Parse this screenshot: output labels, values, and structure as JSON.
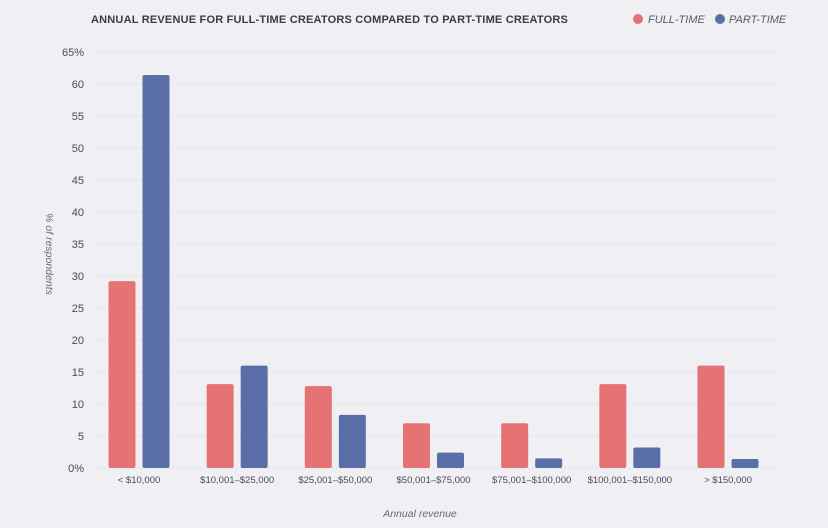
{
  "chart_data": {
    "type": "bar",
    "title": "ANNUAL REVENUE FOR FULL-TIME CREATORS COMPARED TO PART-TIME CREATORS",
    "xlabel": "Annual revenue",
    "ylabel": "% of respondents",
    "ylim": [
      0,
      65
    ],
    "yticks": [
      {
        "value": 0,
        "label": "0%"
      },
      {
        "value": 5,
        "label": "5"
      },
      {
        "value": 10,
        "label": "10"
      },
      {
        "value": 15,
        "label": "15"
      },
      {
        "value": 20,
        "label": "20"
      },
      {
        "value": 25,
        "label": "25"
      },
      {
        "value": 30,
        "label": "30"
      },
      {
        "value": 35,
        "label": "35"
      },
      {
        "value": 40,
        "label": "40"
      },
      {
        "value": 45,
        "label": "45"
      },
      {
        "value": 50,
        "label": "50"
      },
      {
        "value": 55,
        "label": "55"
      },
      {
        "value": 60,
        "label": "60"
      },
      {
        "value": 65,
        "label": "65%"
      }
    ],
    "grid": true,
    "legend_position": "top-right",
    "categories": [
      "< $10,000",
      "$10,001–$25,000",
      "$25,001–$50,000",
      "$50,001–$75,000",
      "$75,001–$100,000",
      "$100,001–$150,000",
      "> $150,000"
    ],
    "series": [
      {
        "name": "FULL-TIME",
        "color": "#e57373",
        "values": [
          29.2,
          13.1,
          12.8,
          7.0,
          7.0,
          13.1,
          16.0
        ]
      },
      {
        "name": "PART-TIME",
        "color": "#5a6fa8",
        "values": [
          61.4,
          16.0,
          8.3,
          2.4,
          1.5,
          3.2,
          1.4
        ]
      }
    ]
  }
}
